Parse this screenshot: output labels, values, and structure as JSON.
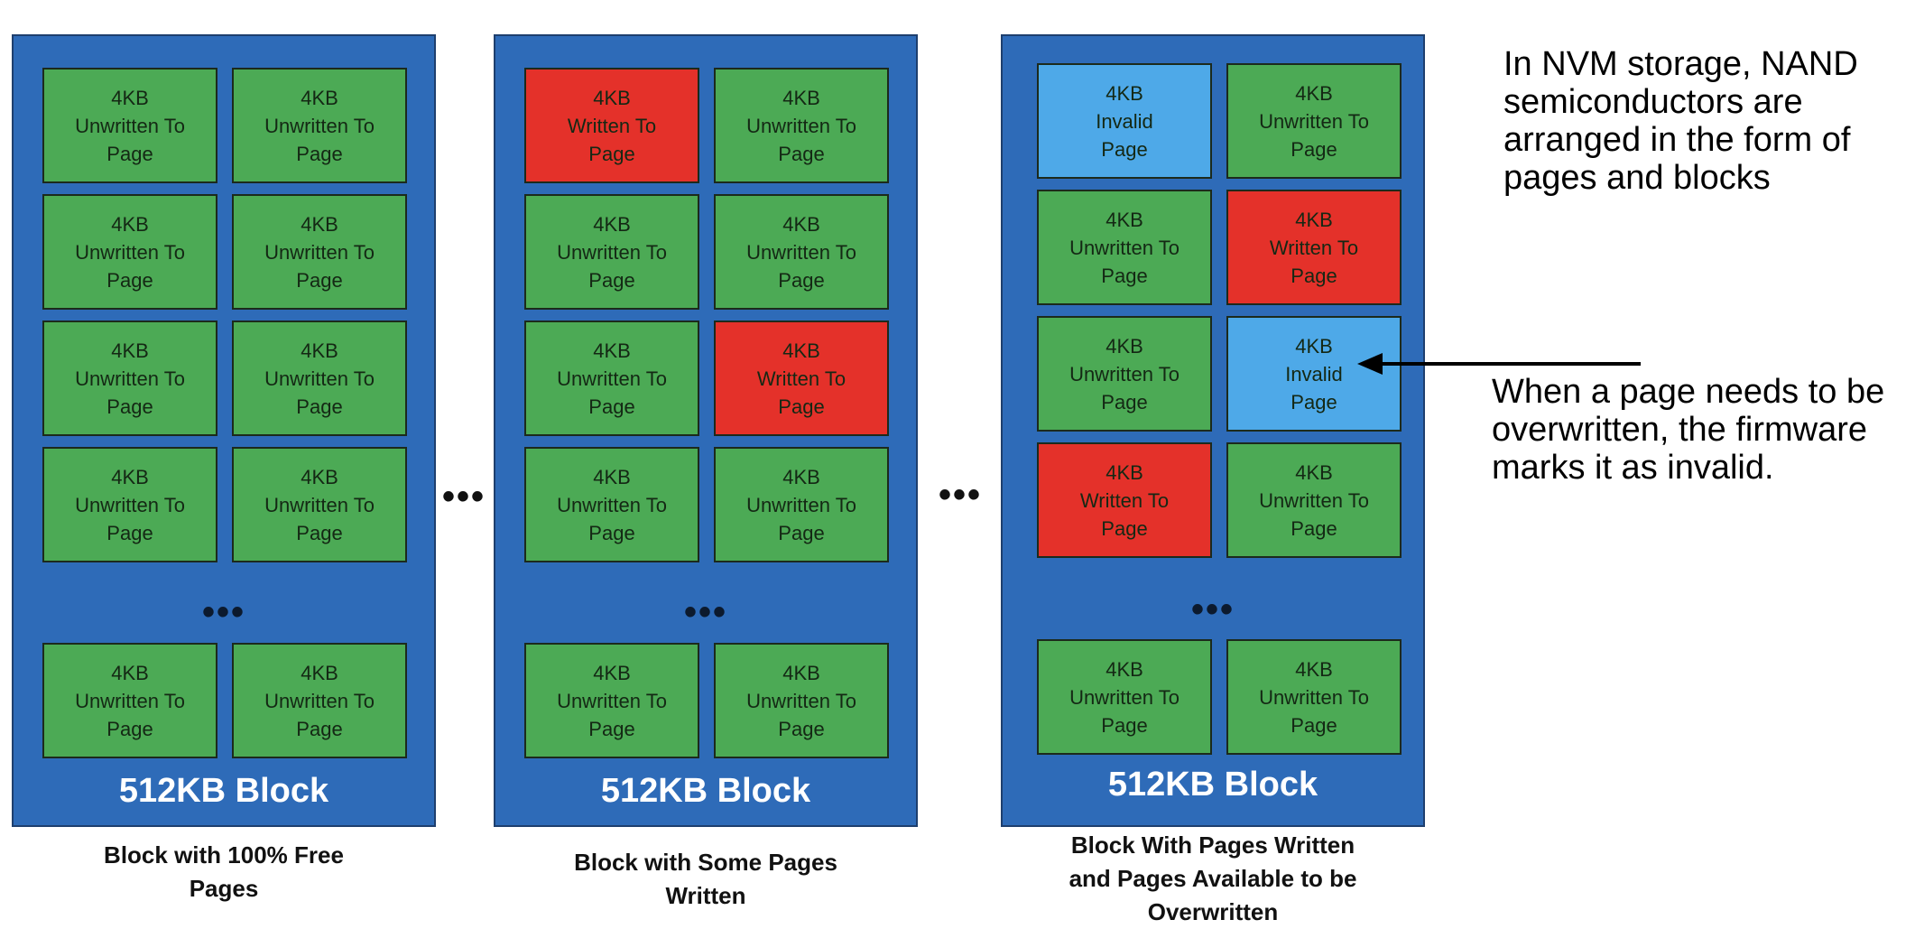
{
  "blocks": [
    {
      "label": "512KB Block",
      "caption": "Block with 100% Free Pages",
      "ellipsis": "•••",
      "pages": [
        {
          "size": "4KB",
          "line1": "Unwritten To",
          "line2": "Page",
          "state": "unwritten"
        },
        {
          "size": "4KB",
          "line1": "Unwritten To",
          "line2": "Page",
          "state": "unwritten"
        },
        {
          "size": "4KB",
          "line1": "Unwritten To",
          "line2": "Page",
          "state": "unwritten"
        },
        {
          "size": "4KB",
          "line1": "Unwritten To",
          "line2": "Page",
          "state": "unwritten"
        },
        {
          "size": "4KB",
          "line1": "Unwritten To",
          "line2": "Page",
          "state": "unwritten"
        },
        {
          "size": "4KB",
          "line1": "Unwritten To",
          "line2": "Page",
          "state": "unwritten"
        },
        {
          "size": "4KB",
          "line1": "Unwritten To",
          "line2": "Page",
          "state": "unwritten"
        },
        {
          "size": "4KB",
          "line1": "Unwritten To",
          "line2": "Page",
          "state": "unwritten"
        },
        {
          "size": "4KB",
          "line1": "Unwritten To",
          "line2": "Page",
          "state": "unwritten"
        },
        {
          "size": "4KB",
          "line1": "Unwritten To",
          "line2": "Page",
          "state": "unwritten"
        }
      ]
    },
    {
      "label": "512KB Block",
      "caption": "Block with Some Pages Written",
      "ellipsis": "•••",
      "pages": [
        {
          "size": "4KB",
          "line1": "Written To",
          "line2": "Page",
          "state": "written"
        },
        {
          "size": "4KB",
          "line1": "Unwritten To",
          "line2": "Page",
          "state": "unwritten"
        },
        {
          "size": "4KB",
          "line1": "Unwritten To",
          "line2": "Page",
          "state": "unwritten"
        },
        {
          "size": "4KB",
          "line1": "Unwritten To",
          "line2": "Page",
          "state": "unwritten"
        },
        {
          "size": "4KB",
          "line1": "Unwritten To",
          "line2": "Page",
          "state": "unwritten"
        },
        {
          "size": "4KB",
          "line1": "Written To",
          "line2": "Page",
          "state": "written"
        },
        {
          "size": "4KB",
          "line1": "Unwritten To",
          "line2": "Page",
          "state": "unwritten"
        },
        {
          "size": "4KB",
          "line1": "Unwritten To",
          "line2": "Page",
          "state": "unwritten"
        },
        {
          "size": "4KB",
          "line1": "Unwritten To",
          "line2": "Page",
          "state": "unwritten"
        },
        {
          "size": "4KB",
          "line1": "Unwritten To",
          "line2": "Page",
          "state": "unwritten"
        }
      ]
    },
    {
      "label": "512KB Block",
      "caption": "Block With Pages Written and Pages Available to be Overwritten",
      "ellipsis": "•••",
      "pages": [
        {
          "size": "4KB",
          "line1": "Invalid",
          "line2": "Page",
          "state": "invalid"
        },
        {
          "size": "4KB",
          "line1": "Unwritten To",
          "line2": "Page",
          "state": "unwritten"
        },
        {
          "size": "4KB",
          "line1": "Unwritten To",
          "line2": "Page",
          "state": "unwritten"
        },
        {
          "size": "4KB",
          "line1": "Written To",
          "line2": "Page",
          "state": "written"
        },
        {
          "size": "4KB",
          "line1": "Unwritten To",
          "line2": "Page",
          "state": "unwritten"
        },
        {
          "size": "4KB",
          "line1": "Invalid",
          "line2": "Page",
          "state": "invalid"
        },
        {
          "size": "4KB",
          "line1": "Written To",
          "line2": "Page",
          "state": "written"
        },
        {
          "size": "4KB",
          "line1": "Unwritten To",
          "line2": "Page",
          "state": "unwritten"
        },
        {
          "size": "4KB",
          "line1": "Unwritten To",
          "line2": "Page",
          "state": "unwritten"
        },
        {
          "size": "4KB",
          "line1": "Unwritten To",
          "line2": "Page",
          "state": "unwritten"
        }
      ]
    }
  ],
  "between_blocks": [
    "•••",
    "•••"
  ],
  "notes": {
    "top": "In NVM storage, NAND semiconductors are arranged in the form of pages and blocks",
    "arrow": "When a page needs to be overwritten, the firmware marks it as invalid."
  },
  "colors": {
    "block": "#2e6bb8",
    "unwritten": "#4caa55",
    "written": "#e4312a",
    "invalid": "#4ea9e8"
  }
}
